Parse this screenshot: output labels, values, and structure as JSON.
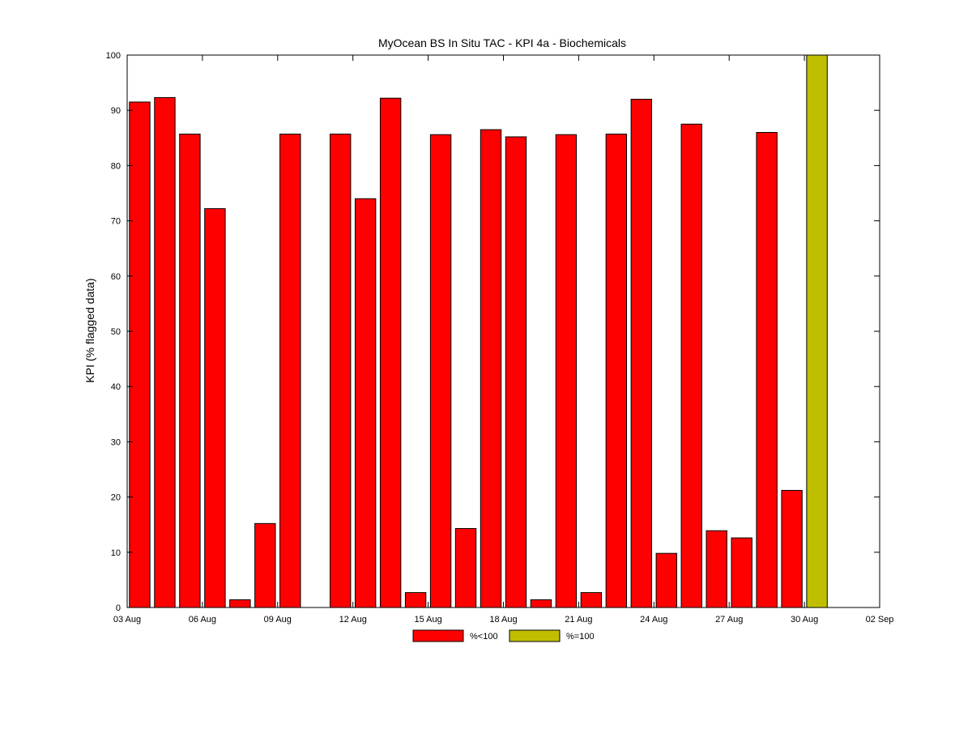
{
  "chart_data": {
    "type": "bar",
    "title": "MyOcean  BS In Situ TAC - KPI 4a - Biochemicals",
    "ylabel": "KPI (% flagged data)",
    "xlabel": "",
    "ylim": [
      0,
      100
    ],
    "yticks": [
      0,
      10,
      20,
      30,
      40,
      50,
      60,
      70,
      80,
      90,
      100
    ],
    "x_range": [
      "03 Aug",
      "02 Sep"
    ],
    "xtick_labels": [
      "03 Aug",
      "06 Aug",
      "09 Aug",
      "12 Aug",
      "15 Aug",
      "18 Aug",
      "21 Aug",
      "24 Aug",
      "27 Aug",
      "30 Aug",
      "02 Sep"
    ],
    "grid": false,
    "legend_position": "bottom-center",
    "series": [
      {
        "name": "%<100",
        "color": "#ff0000",
        "points": [
          {
            "date": "03 Aug",
            "value": 91.5
          },
          {
            "date": "04 Aug",
            "value": 92.3
          },
          {
            "date": "05 Aug",
            "value": 85.7
          },
          {
            "date": "06 Aug",
            "value": 72.2
          },
          {
            "date": "07 Aug",
            "value": 1.4
          },
          {
            "date": "08 Aug",
            "value": 15.2
          },
          {
            "date": "09 Aug",
            "value": 85.7
          },
          {
            "date": "11 Aug",
            "value": 85.7
          },
          {
            "date": "12 Aug",
            "value": 74.0
          },
          {
            "date": "13 Aug",
            "value": 92.2
          },
          {
            "date": "14 Aug",
            "value": 2.7
          },
          {
            "date": "15 Aug",
            "value": 85.6
          },
          {
            "date": "16 Aug",
            "value": 14.3
          },
          {
            "date": "17 Aug",
            "value": 86.5
          },
          {
            "date": "18 Aug",
            "value": 85.2
          },
          {
            "date": "19 Aug",
            "value": 1.4
          },
          {
            "date": "20 Aug",
            "value": 85.6
          },
          {
            "date": "21 Aug",
            "value": 2.7
          },
          {
            "date": "22 Aug",
            "value": 85.7
          },
          {
            "date": "23 Aug",
            "value": 92.0
          },
          {
            "date": "24 Aug",
            "value": 9.8
          },
          {
            "date": "25 Aug",
            "value": 87.5
          },
          {
            "date": "26 Aug",
            "value": 13.9
          },
          {
            "date": "27 Aug",
            "value": 12.6
          },
          {
            "date": "28 Aug",
            "value": 86.0
          },
          {
            "date": "29 Aug",
            "value": 21.2
          }
        ]
      },
      {
        "name": "%=100",
        "color": "#bfbf00",
        "points": [
          {
            "date": "30 Aug",
            "value": 100
          }
        ]
      }
    ]
  }
}
